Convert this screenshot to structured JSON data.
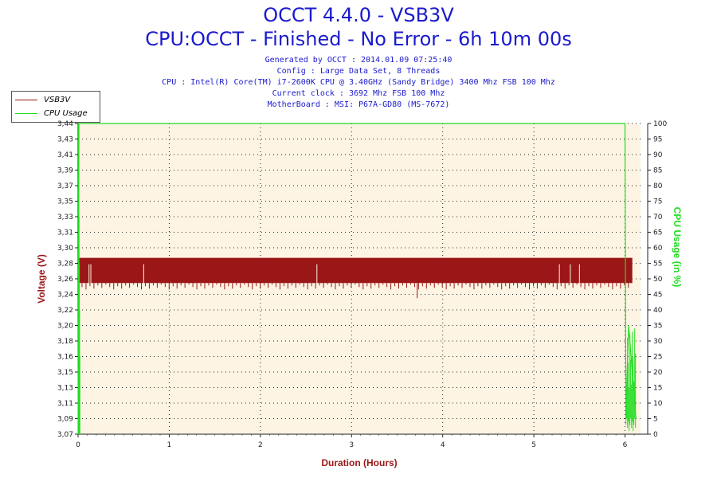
{
  "header": {
    "title": "OCCT 4.4.0 - VSB3V",
    "subtitle": "CPU:OCCT - Finished - No Error - 6h 10m 00s",
    "info_lines": [
      "Generated by OCCT : 2014.01.09 07:25:40",
      "Config : Large Data Set, 8 Threads",
      "CPU : Intel(R) Core(TM) i7-2600K CPU @ 3.40GHz (Sandy Bridge) 3400 Mhz FSB 100 Mhz",
      "Current clock : 3692 Mhz FSB 100 Mhz",
      "MotherBoard : MSI: P67A-GD80 (MS-7672)"
    ]
  },
  "chart_data": {
    "type": "line",
    "xlabel": "Duration (Hours)",
    "ylabel": "Voltage (V)",
    "y2label": "CPU Usage (in %)",
    "xlim": [
      0,
      6.17
    ],
    "ylim": [
      3.07,
      3.44
    ],
    "y2lim": [
      0,
      100
    ],
    "x_ticks": [
      "0",
      "1",
      "2",
      "3",
      "4",
      "5",
      "6"
    ],
    "y_ticks": [
      "3,07",
      "3,09",
      "3,11",
      "3,13",
      "3,15",
      "3,16",
      "3,18",
      "3,20",
      "3,22",
      "3,24",
      "3,26",
      "3,28",
      "3,30",
      "3,31",
      "3,33",
      "3,35",
      "3,37",
      "3,39",
      "3,41",
      "3,43",
      "3,44"
    ],
    "y2_ticks": [
      "0",
      "5",
      "10",
      "15",
      "20",
      "25",
      "30",
      "35",
      "40",
      "45",
      "50",
      "55",
      "60",
      "65",
      "70",
      "75",
      "80",
      "85",
      "90",
      "95",
      "100"
    ],
    "grid": true,
    "legend_position": "top-left",
    "colors": {
      "voltage": "#9b1717",
      "cpu": "#22dd22",
      "plot_bg": "#fdf4e3",
      "axis_label": "#9b1717",
      "y2_label": "#22dd22"
    },
    "series": [
      {
        "name": "VSB3V",
        "axis": "left",
        "x": [
          0.0,
          6.08
        ],
        "y_low": [
          3.25,
          3.25
        ],
        "y_high": [
          3.28,
          3.28
        ],
        "min_dips": [
          {
            "x": 3.72,
            "y": 3.232
          }
        ]
      },
      {
        "name": "CPU Usage",
        "axis": "right",
        "x": [
          0.0,
          0.01,
          0.02,
          6.0,
          6.01,
          6.04,
          6.08,
          6.12
        ],
        "y": [
          0,
          100,
          100,
          100,
          5,
          35,
          20,
          5
        ]
      }
    ]
  }
}
